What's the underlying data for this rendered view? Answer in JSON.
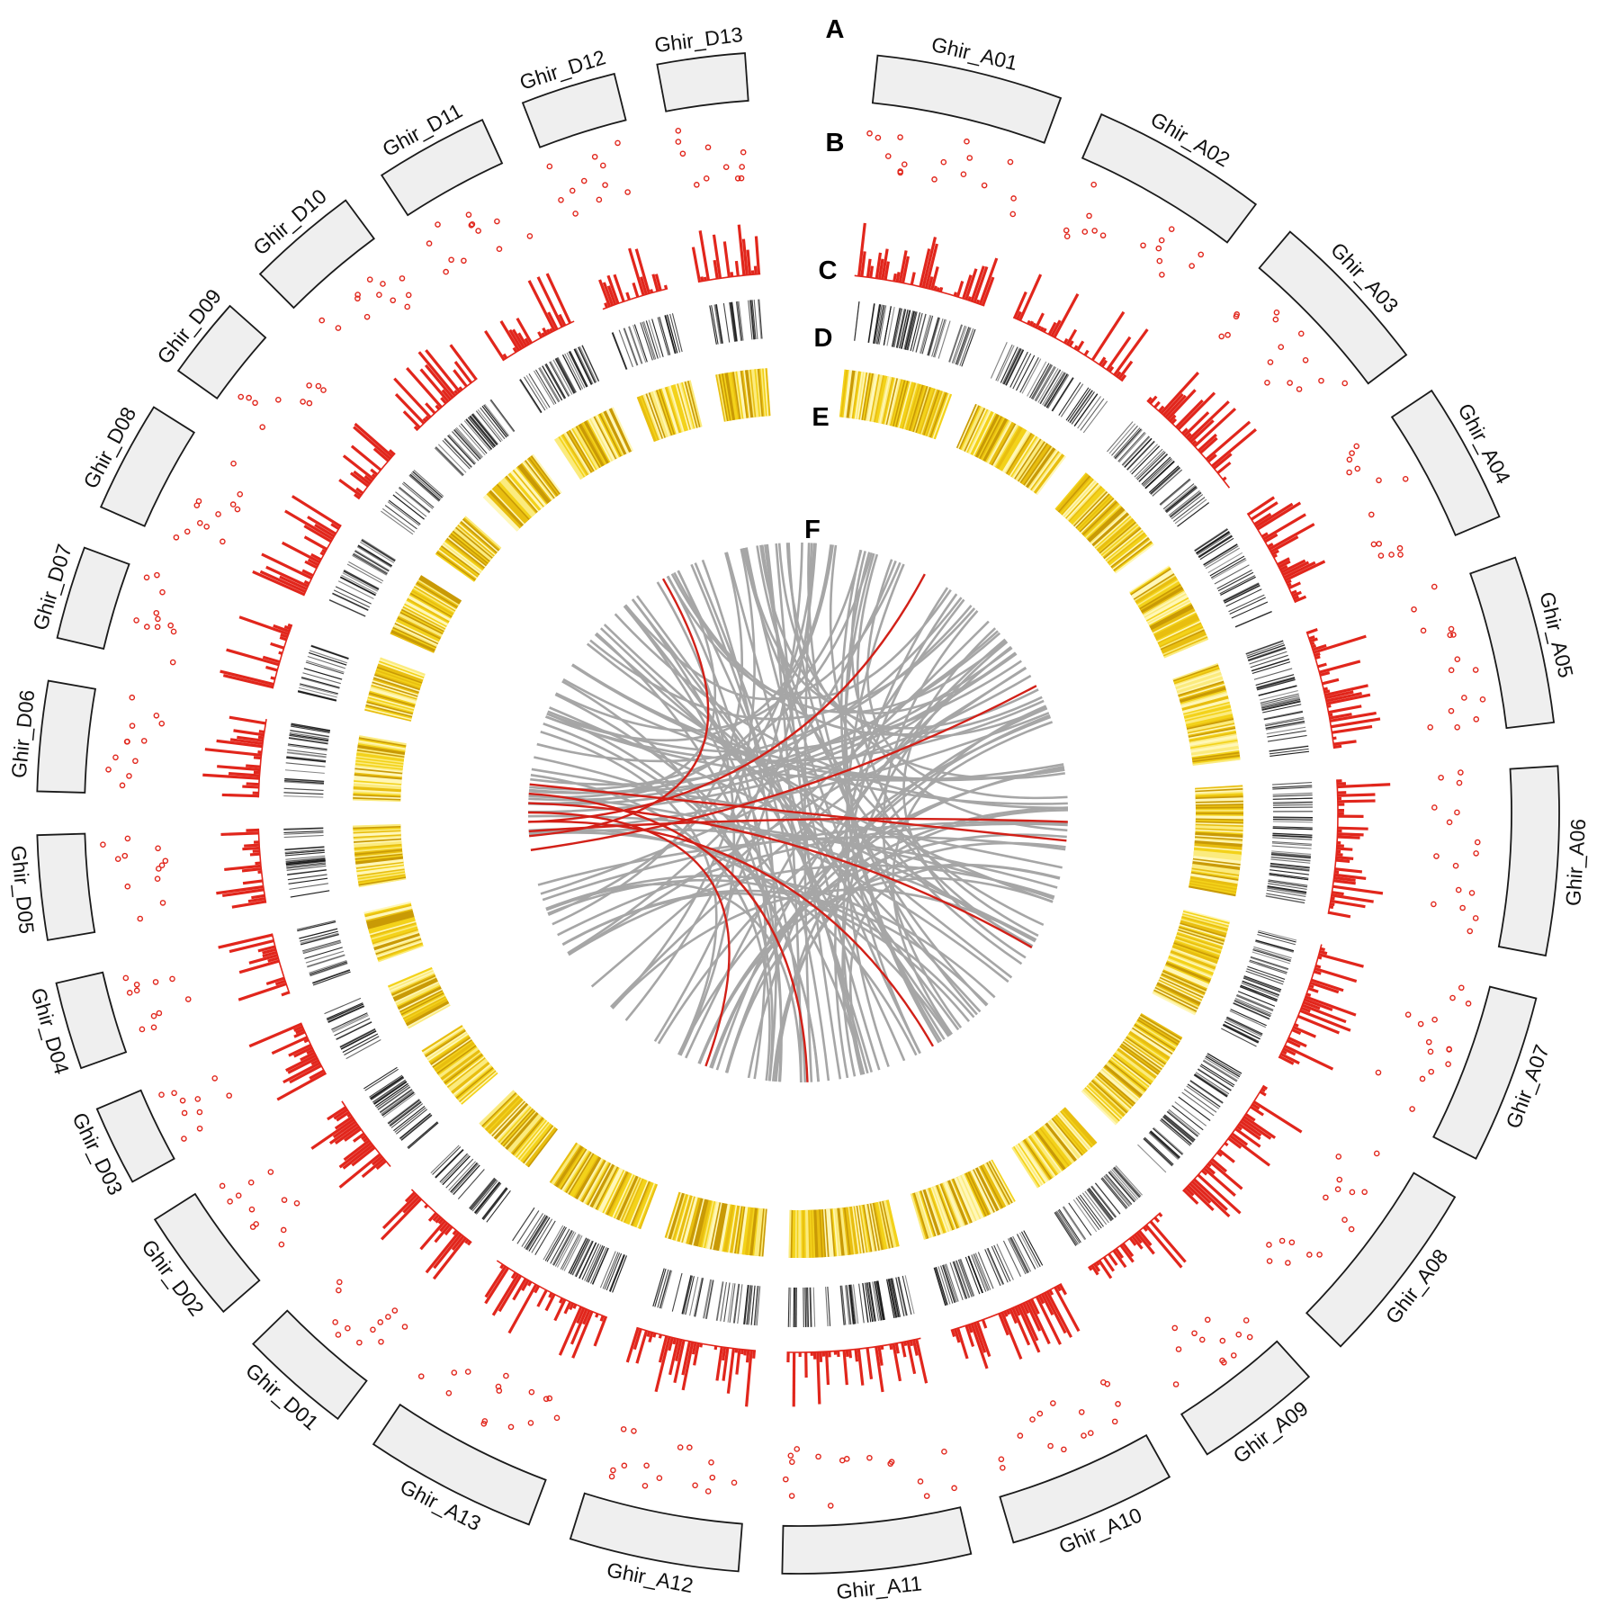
{
  "panel_letters": [
    "A",
    "B",
    "C",
    "D",
    "E",
    "F"
  ],
  "colors": {
    "chromosome_fill": "#efefef",
    "chromosome_stroke": "#1a1a1a",
    "snp_points": "#e1261c",
    "histogram": "#e1261c",
    "gene_density": "#1a1a1a",
    "heatmap_light": "#fff7b8",
    "heatmap_mid": "#f3d21a",
    "heatmap_dark": "#c99a06",
    "links_gray": "#a6a6a6",
    "links_red": "#d22018"
  },
  "chromosomes": [
    {
      "name": "Ghir_A01",
      "size": 1.0
    },
    {
      "name": "Ghir_A02",
      "size": 0.95
    },
    {
      "name": "Ghir_A03",
      "size": 0.9
    },
    {
      "name": "Ghir_A04",
      "size": 0.76
    },
    {
      "name": "Ghir_A05",
      "size": 0.9
    },
    {
      "name": "Ghir_A06",
      "size": 1.01
    },
    {
      "name": "Ghir_A07",
      "size": 0.91
    },
    {
      "name": "Ghir_A08",
      "size": 1.0
    },
    {
      "name": "Ghir_A09",
      "size": 0.68
    },
    {
      "name": "Ghir_A10",
      "size": 0.9
    },
    {
      "name": "Ghir_A11",
      "size": 1.01
    },
    {
      "name": "Ghir_A12",
      "size": 0.91
    },
    {
      "name": "Ghir_A13",
      "size": 0.93
    },
    {
      "name": "Ghir_D01",
      "size": 0.6
    },
    {
      "name": "Ghir_D02",
      "size": 0.61
    },
    {
      "name": "Ghir_D03",
      "size": 0.43
    },
    {
      "name": "Ghir_D04",
      "size": 0.47
    },
    {
      "name": "Ghir_D05",
      "size": 0.56
    },
    {
      "name": "Ghir_D06",
      "size": 0.59
    },
    {
      "name": "Ghir_D07",
      "size": 0.5
    },
    {
      "name": "Ghir_D08",
      "size": 0.6
    },
    {
      "name": "Ghir_D09",
      "size": 0.44
    },
    {
      "name": "Ghir_D10",
      "size": 0.6
    },
    {
      "name": "Ghir_D11",
      "size": 0.61
    },
    {
      "name": "Ghir_D12",
      "size": 0.51
    },
    {
      "name": "Ghir_D13",
      "size": 0.47
    }
  ],
  "red_link_count": 9,
  "gray_link_count": 120
}
